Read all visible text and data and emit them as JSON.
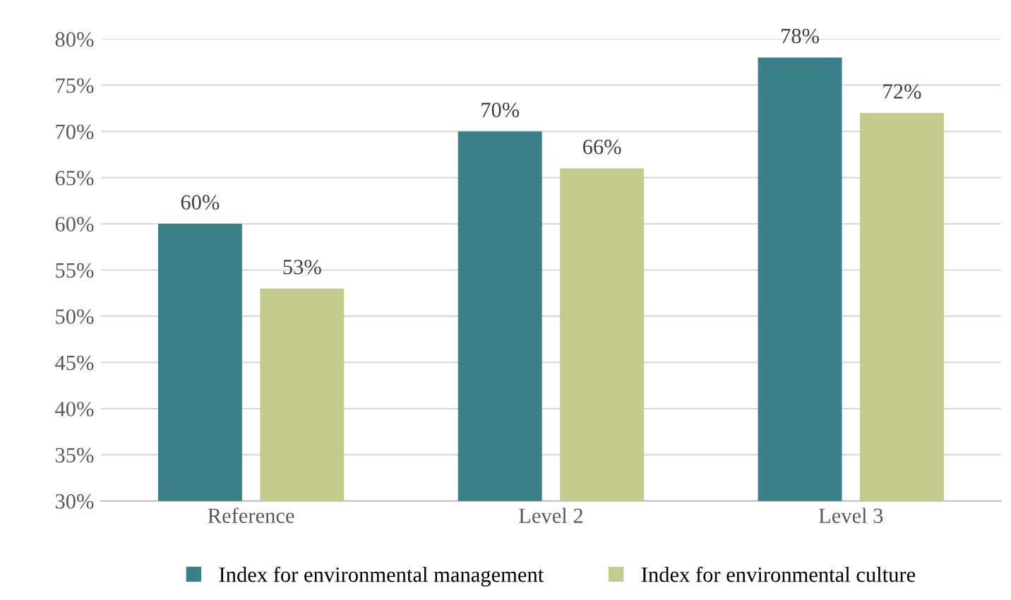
{
  "chart_data": {
    "type": "bar",
    "categories": [
      "Reference",
      "Level 2",
      "Level 3"
    ],
    "series": [
      {
        "name": "Index for environmental management",
        "color": "#3b8088",
        "values": [
          60,
          70,
          78
        ],
        "value_labels": [
          "60%",
          "70%",
          "78%"
        ]
      },
      {
        "name": "Index for environmental culture",
        "color": "#c3cb8d",
        "values": [
          53,
          66,
          72
        ],
        "value_labels": [
          "53%",
          "66%",
          "72%"
        ]
      }
    ],
    "ylim": [
      30,
      80
    ],
    "yticks": [
      {
        "value": 30,
        "label": "30%"
      },
      {
        "value": 35,
        "label": "35%"
      },
      {
        "value": 40,
        "label": "40%"
      },
      {
        "value": 45,
        "label": "45%"
      },
      {
        "value": 50,
        "label": "50%"
      },
      {
        "value": 55,
        "label": "55%"
      },
      {
        "value": 60,
        "label": "60%"
      },
      {
        "value": 65,
        "label": "65%"
      },
      {
        "value": 70,
        "label": "70%"
      },
      {
        "value": 75,
        "label": "75%"
      },
      {
        "value": 80,
        "label": "80%"
      }
    ],
    "grid": "y",
    "legend": "bottom"
  }
}
